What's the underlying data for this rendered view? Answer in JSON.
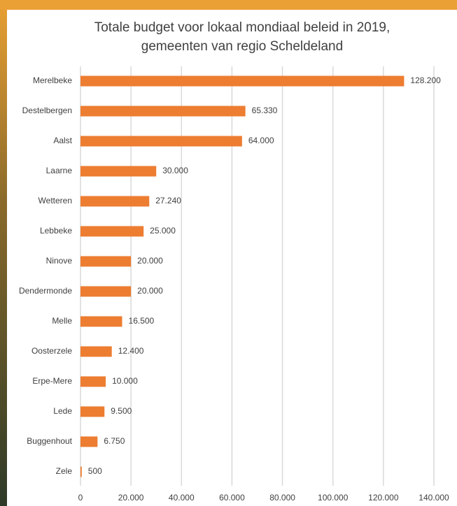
{
  "chart_data": {
    "type": "hbar",
    "title": [
      "Totale budget voor lokaal mondiaal beleid in 2019,",
      "gemeenten van regio Scheldeland"
    ],
    "categories": [
      "Merelbeke",
      "Destelbergen",
      "Aalst",
      "Laarne",
      "Wetteren",
      "Lebbeke",
      "Ninove",
      "Dendermonde",
      "Melle",
      "Oosterzele",
      "Erpe-Mere",
      "Lede",
      "Buggenhout",
      "Zele"
    ],
    "values": [
      128200,
      65330,
      64000,
      30000,
      27240,
      25000,
      20000,
      20000,
      16500,
      12400,
      10000,
      9500,
      6750,
      500
    ],
    "value_labels": [
      "128.200",
      "65.330",
      "64.000",
      "30.000",
      "27.240",
      "25.000",
      "20.000",
      "20.000",
      "16.500",
      "12.400",
      "10.000",
      "9.500",
      "6.750",
      "500"
    ],
    "color": "#ed7d31",
    "xlim": [
      0,
      140000
    ],
    "xticks": [
      0,
      {
        "value": 20000,
        "label": "20.000"
      },
      {
        "value": 40000,
        "label": "40.000"
      },
      {
        "value": 60000,
        "label": "60.000"
      },
      {
        "value": 80000,
        "label": "80.000"
      },
      {
        "value": 100000,
        "label": "100.000"
      },
      {
        "value": 120000,
        "label": "120.000"
      },
      {
        "value": 140000,
        "label": "140.000"
      }
    ],
    "grid": true
  }
}
